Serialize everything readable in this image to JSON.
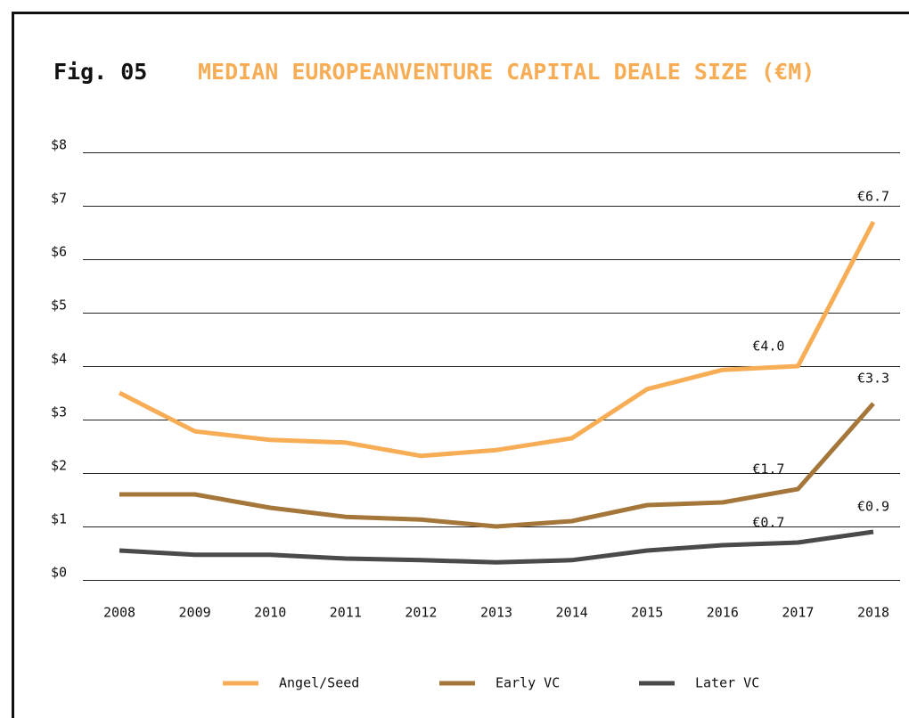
{
  "chart_data": {
    "type": "line",
    "title_prefix": "Fig. 05",
    "title": "MEDIAN EUROPEANVENTURE CAPITAL DEALE SIZE (€M)",
    "categories": [
      "2008",
      "2009",
      "2010",
      "2011",
      "2012",
      "2013",
      "2014",
      "2015",
      "2016",
      "2017",
      "2018"
    ],
    "series": [
      {
        "name": "Angel/Seed",
        "color": "#f7ad55",
        "values": [
          3.5,
          2.78,
          2.62,
          2.57,
          2.32,
          2.43,
          2.65,
          3.57,
          3.93,
          4.0,
          6.7
        ],
        "value_labels": [
          null,
          null,
          null,
          null,
          null,
          null,
          null,
          null,
          null,
          "€4.0",
          "€6.7"
        ]
      },
      {
        "name": "Early VC",
        "color": "#a5763a",
        "values": [
          1.6,
          1.6,
          1.35,
          1.18,
          1.13,
          1.0,
          1.1,
          1.4,
          1.45,
          1.7,
          3.3
        ],
        "value_labels": [
          null,
          null,
          null,
          null,
          null,
          null,
          null,
          null,
          null,
          "€1.7",
          "€3.3"
        ]
      },
      {
        "name": "Later VC",
        "color": "#4a4a4a",
        "values": [
          0.55,
          0.47,
          0.47,
          0.4,
          0.37,
          0.33,
          0.37,
          0.55,
          0.65,
          0.7,
          0.9
        ],
        "value_labels": [
          null,
          null,
          null,
          null,
          null,
          null,
          null,
          null,
          null,
          "€0.7",
          "€0.9"
        ]
      }
    ],
    "ylim": [
      0,
      8
    ],
    "yticks": [
      {
        "value": 0,
        "label": "$0"
      },
      {
        "value": 1,
        "label": "$1"
      },
      {
        "value": 2,
        "label": "$2"
      },
      {
        "value": 3,
        "label": "$3"
      },
      {
        "value": 4,
        "label": "$4"
      },
      {
        "value": 5,
        "label": "$5"
      },
      {
        "value": 6,
        "label": "$6"
      },
      {
        "value": 7,
        "label": "$7"
      },
      {
        "value": 8,
        "label": "$8"
      }
    ],
    "grid": true,
    "legend": "bottom"
  }
}
